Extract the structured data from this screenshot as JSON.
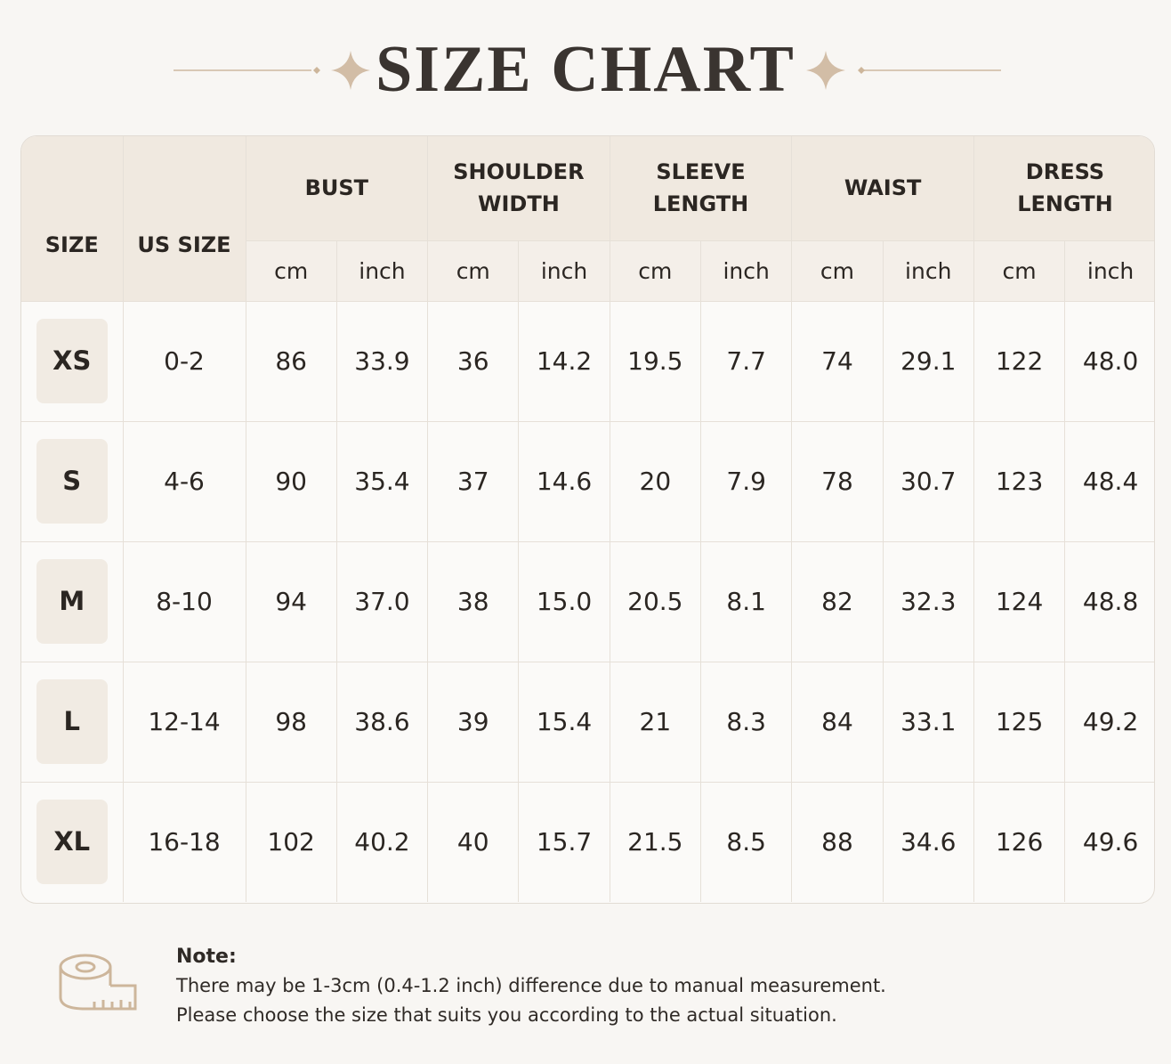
{
  "header": {
    "title": "SIZE CHART"
  },
  "table": {
    "columns": [
      "SIZE",
      "US SIZE"
    ],
    "measurements": [
      {
        "name": "BUST",
        "units": [
          "cm",
          "inch"
        ]
      },
      {
        "name": "SHOULDER WIDTH",
        "units": [
          "cm",
          "inch"
        ]
      },
      {
        "name": "SLEEVE LENGTH",
        "units": [
          "cm",
          "inch"
        ]
      },
      {
        "name": "WAIST",
        "units": [
          "cm",
          "inch"
        ]
      },
      {
        "name": "DRESS LENGTH",
        "units": [
          "cm",
          "inch"
        ]
      }
    ],
    "rows": [
      [
        "XS",
        "0-2",
        "86",
        "33.9",
        "36",
        "14.2",
        "19.5",
        "7.7",
        "74",
        "29.1",
        "122",
        "48.0"
      ],
      [
        "S",
        "4-6",
        "90",
        "35.4",
        "37",
        "14.6",
        "20",
        "7.9",
        "78",
        "30.7",
        "123",
        "48.4"
      ],
      [
        "M",
        "8-10",
        "94",
        "37.0",
        "38",
        "15.0",
        "20.5",
        "8.1",
        "82",
        "32.3",
        "124",
        "48.8"
      ],
      [
        "L",
        "12-14",
        "98",
        "38.6",
        "39",
        "15.4",
        "21",
        "8.3",
        "84",
        "33.1",
        "125",
        "49.2"
      ],
      [
        "XL",
        "16-18",
        "102",
        "40.2",
        "40",
        "15.7",
        "21.5",
        "8.5",
        "88",
        "34.6",
        "126",
        "49.6"
      ]
    ]
  },
  "note": {
    "label": "Note:",
    "lines": [
      "There may be 1-3cm (0.4-1.2 inch) difference due to manual measurement.",
      "Please choose the size that suits you according to the actual situation."
    ]
  }
}
